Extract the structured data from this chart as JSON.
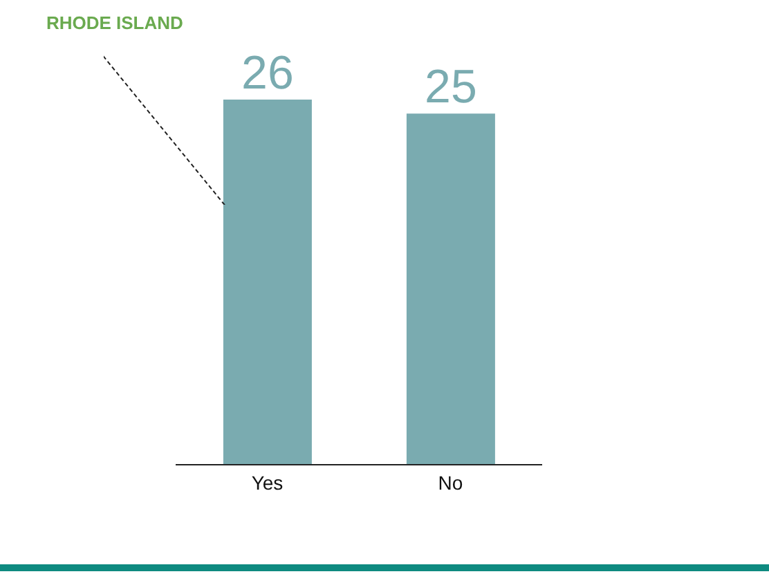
{
  "chart_data": {
    "type": "bar",
    "categories": [
      "Yes",
      "No"
    ],
    "values": [
      26,
      25
    ],
    "color": "#7aabb0",
    "data_labels": true,
    "annotations": [
      "RHODE ISLAND"
    ]
  }
}
